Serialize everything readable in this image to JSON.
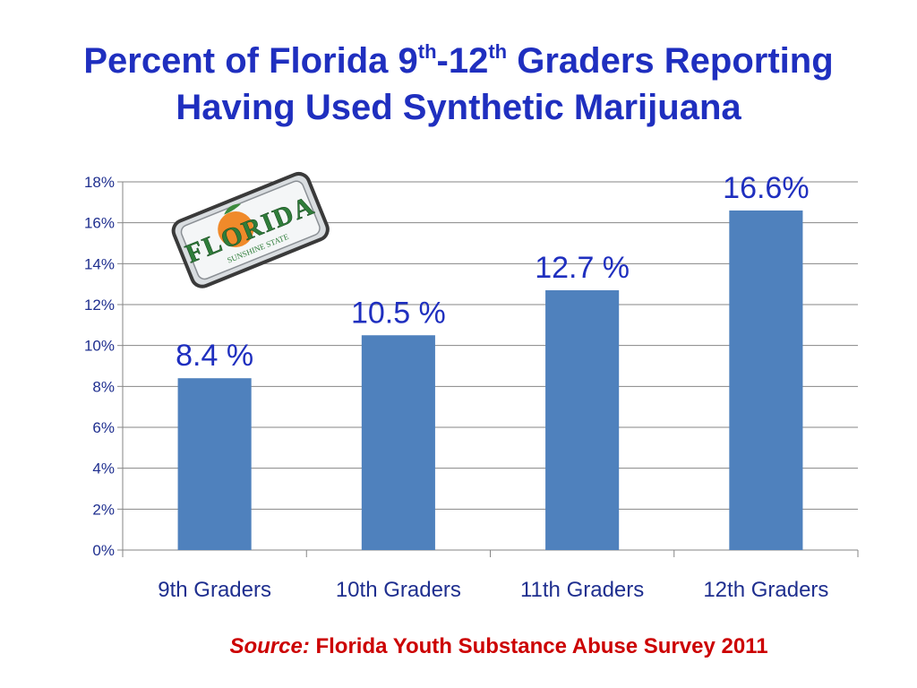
{
  "slide": {
    "title_part1": "Percent of Florida 9",
    "title_sup1": "th",
    "title_part2": "-12",
    "title_sup2": "th",
    "title_part3": " Graders Reporting",
    "title_line2": "Having Used Synthetic Marijuana",
    "source_prefix": "Source:",
    "source_text": " Florida Youth Substance Abuse Survey 2011",
    "logo_text": "FLORIDA",
    "logo_subtext": "SUNSHINE STATE"
  },
  "colors": {
    "title": "#1f2fbf",
    "bar": "#4f81bd",
    "source": "#cc0000",
    "grid": "#868686"
  },
  "chart_data": {
    "type": "bar",
    "title": "Percent of Florida 9th-12th Graders Reporting Having Used Synthetic Marijuana",
    "categories": [
      "9th Graders",
      "10th Graders",
      "11th Graders",
      "12th Graders"
    ],
    "values": [
      8.4,
      10.5,
      12.7,
      16.6
    ],
    "data_labels": [
      "8.4 %",
      "10.5 %",
      "12.7 %",
      "16.6%"
    ],
    "y_ticks": [
      "0%",
      "2%",
      "4%",
      "6%",
      "8%",
      "10%",
      "12%",
      "14%",
      "16%",
      "18%"
    ],
    "ylim": [
      0,
      18
    ],
    "grid": true,
    "xlabel": "",
    "ylabel": "",
    "legend": false
  }
}
